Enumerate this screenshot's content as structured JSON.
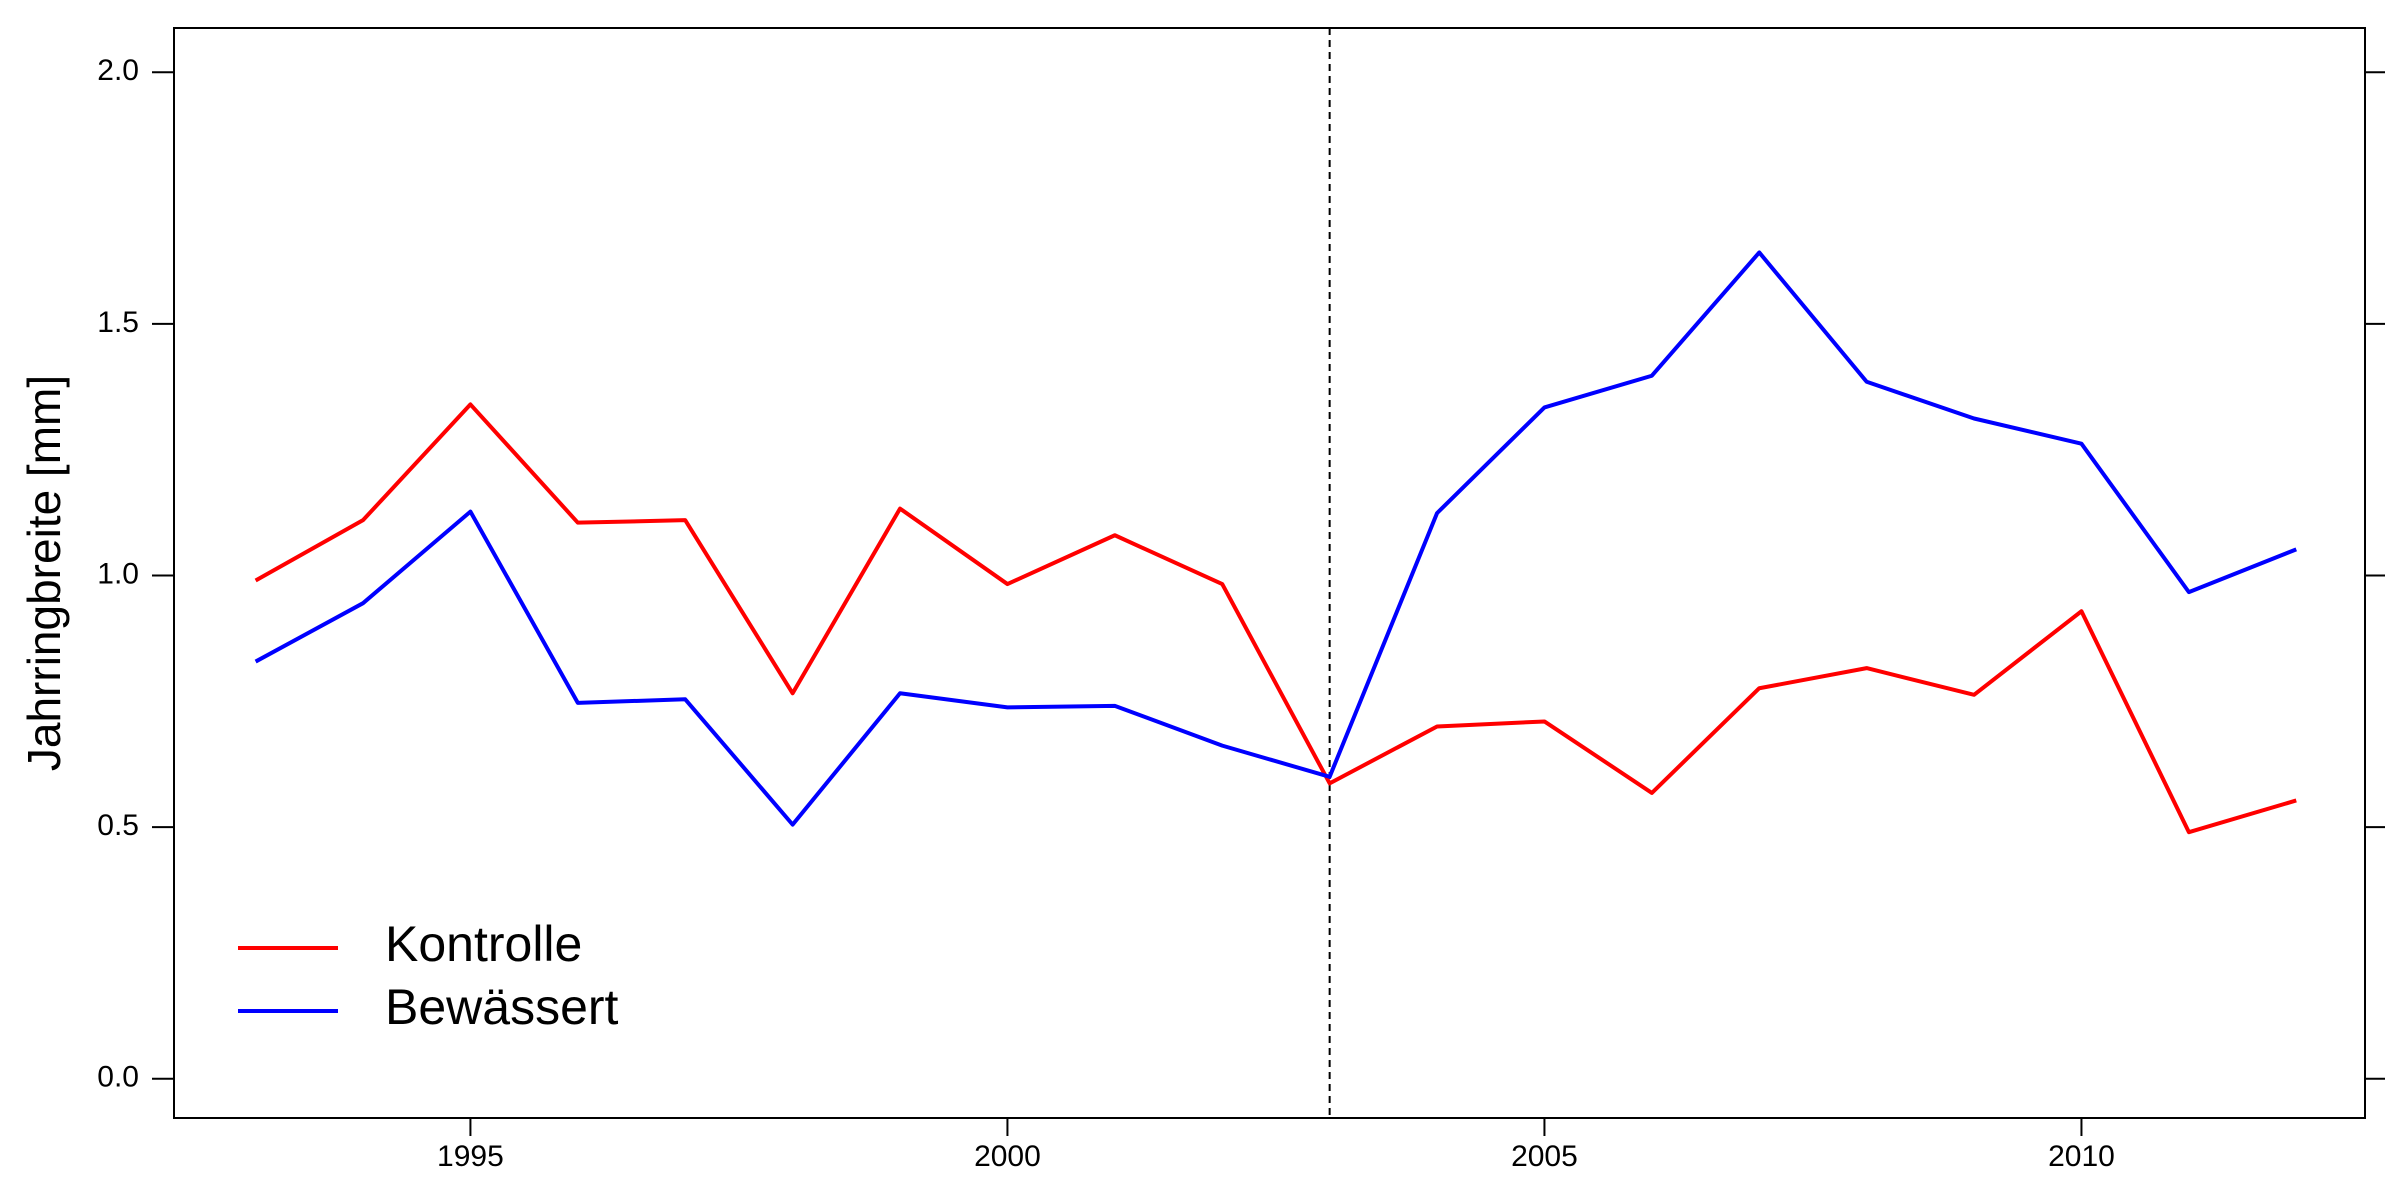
{
  "chart_data": {
    "type": "line",
    "y_label": "Jahrringbreite [mm]",
    "x": [
      1993,
      1994,
      1995,
      1996,
      1997,
      1998,
      1999,
      2000,
      2001,
      2002,
      2003,
      2004,
      2005,
      2006,
      2007,
      2008,
      2009,
      2010,
      2011,
      2012
    ],
    "series": [
      {
        "name": "Kontrolle",
        "color": "#ff0000",
        "values": [
          0.99,
          1.11,
          1.34,
          1.105,
          1.11,
          0.766,
          1.133,
          0.983,
          1.08,
          0.983,
          0.587,
          0.7,
          0.71,
          0.568,
          0.776,
          0.816,
          0.763,
          0.929,
          0.49,
          0.553
        ]
      },
      {
        "name": "Bewässert",
        "color": "#0000ff",
        "values": [
          0.829,
          0.945,
          1.127,
          0.747,
          0.754,
          0.505,
          0.766,
          0.738,
          0.741,
          0.662,
          0.6,
          1.124,
          1.334,
          1.397,
          1.642,
          1.385,
          1.312,
          1.262,
          0.967,
          1.052
        ]
      }
    ],
    "xlim": [
      1992.24,
      2012.64
    ],
    "xticks": [
      1995,
      2000,
      2005,
      2010
    ],
    "ylim": [
      -0.078,
      2.088
    ],
    "yticks": [
      {
        "value": 0,
        "label": "0.0"
      },
      0.5,
      {
        "value": 1,
        "label": "1.0"
      },
      1.5,
      {
        "value": 2,
        "label": "2.0"
      }
    ],
    "vline": 2003,
    "legend": "lower left",
    "grid": false
  }
}
